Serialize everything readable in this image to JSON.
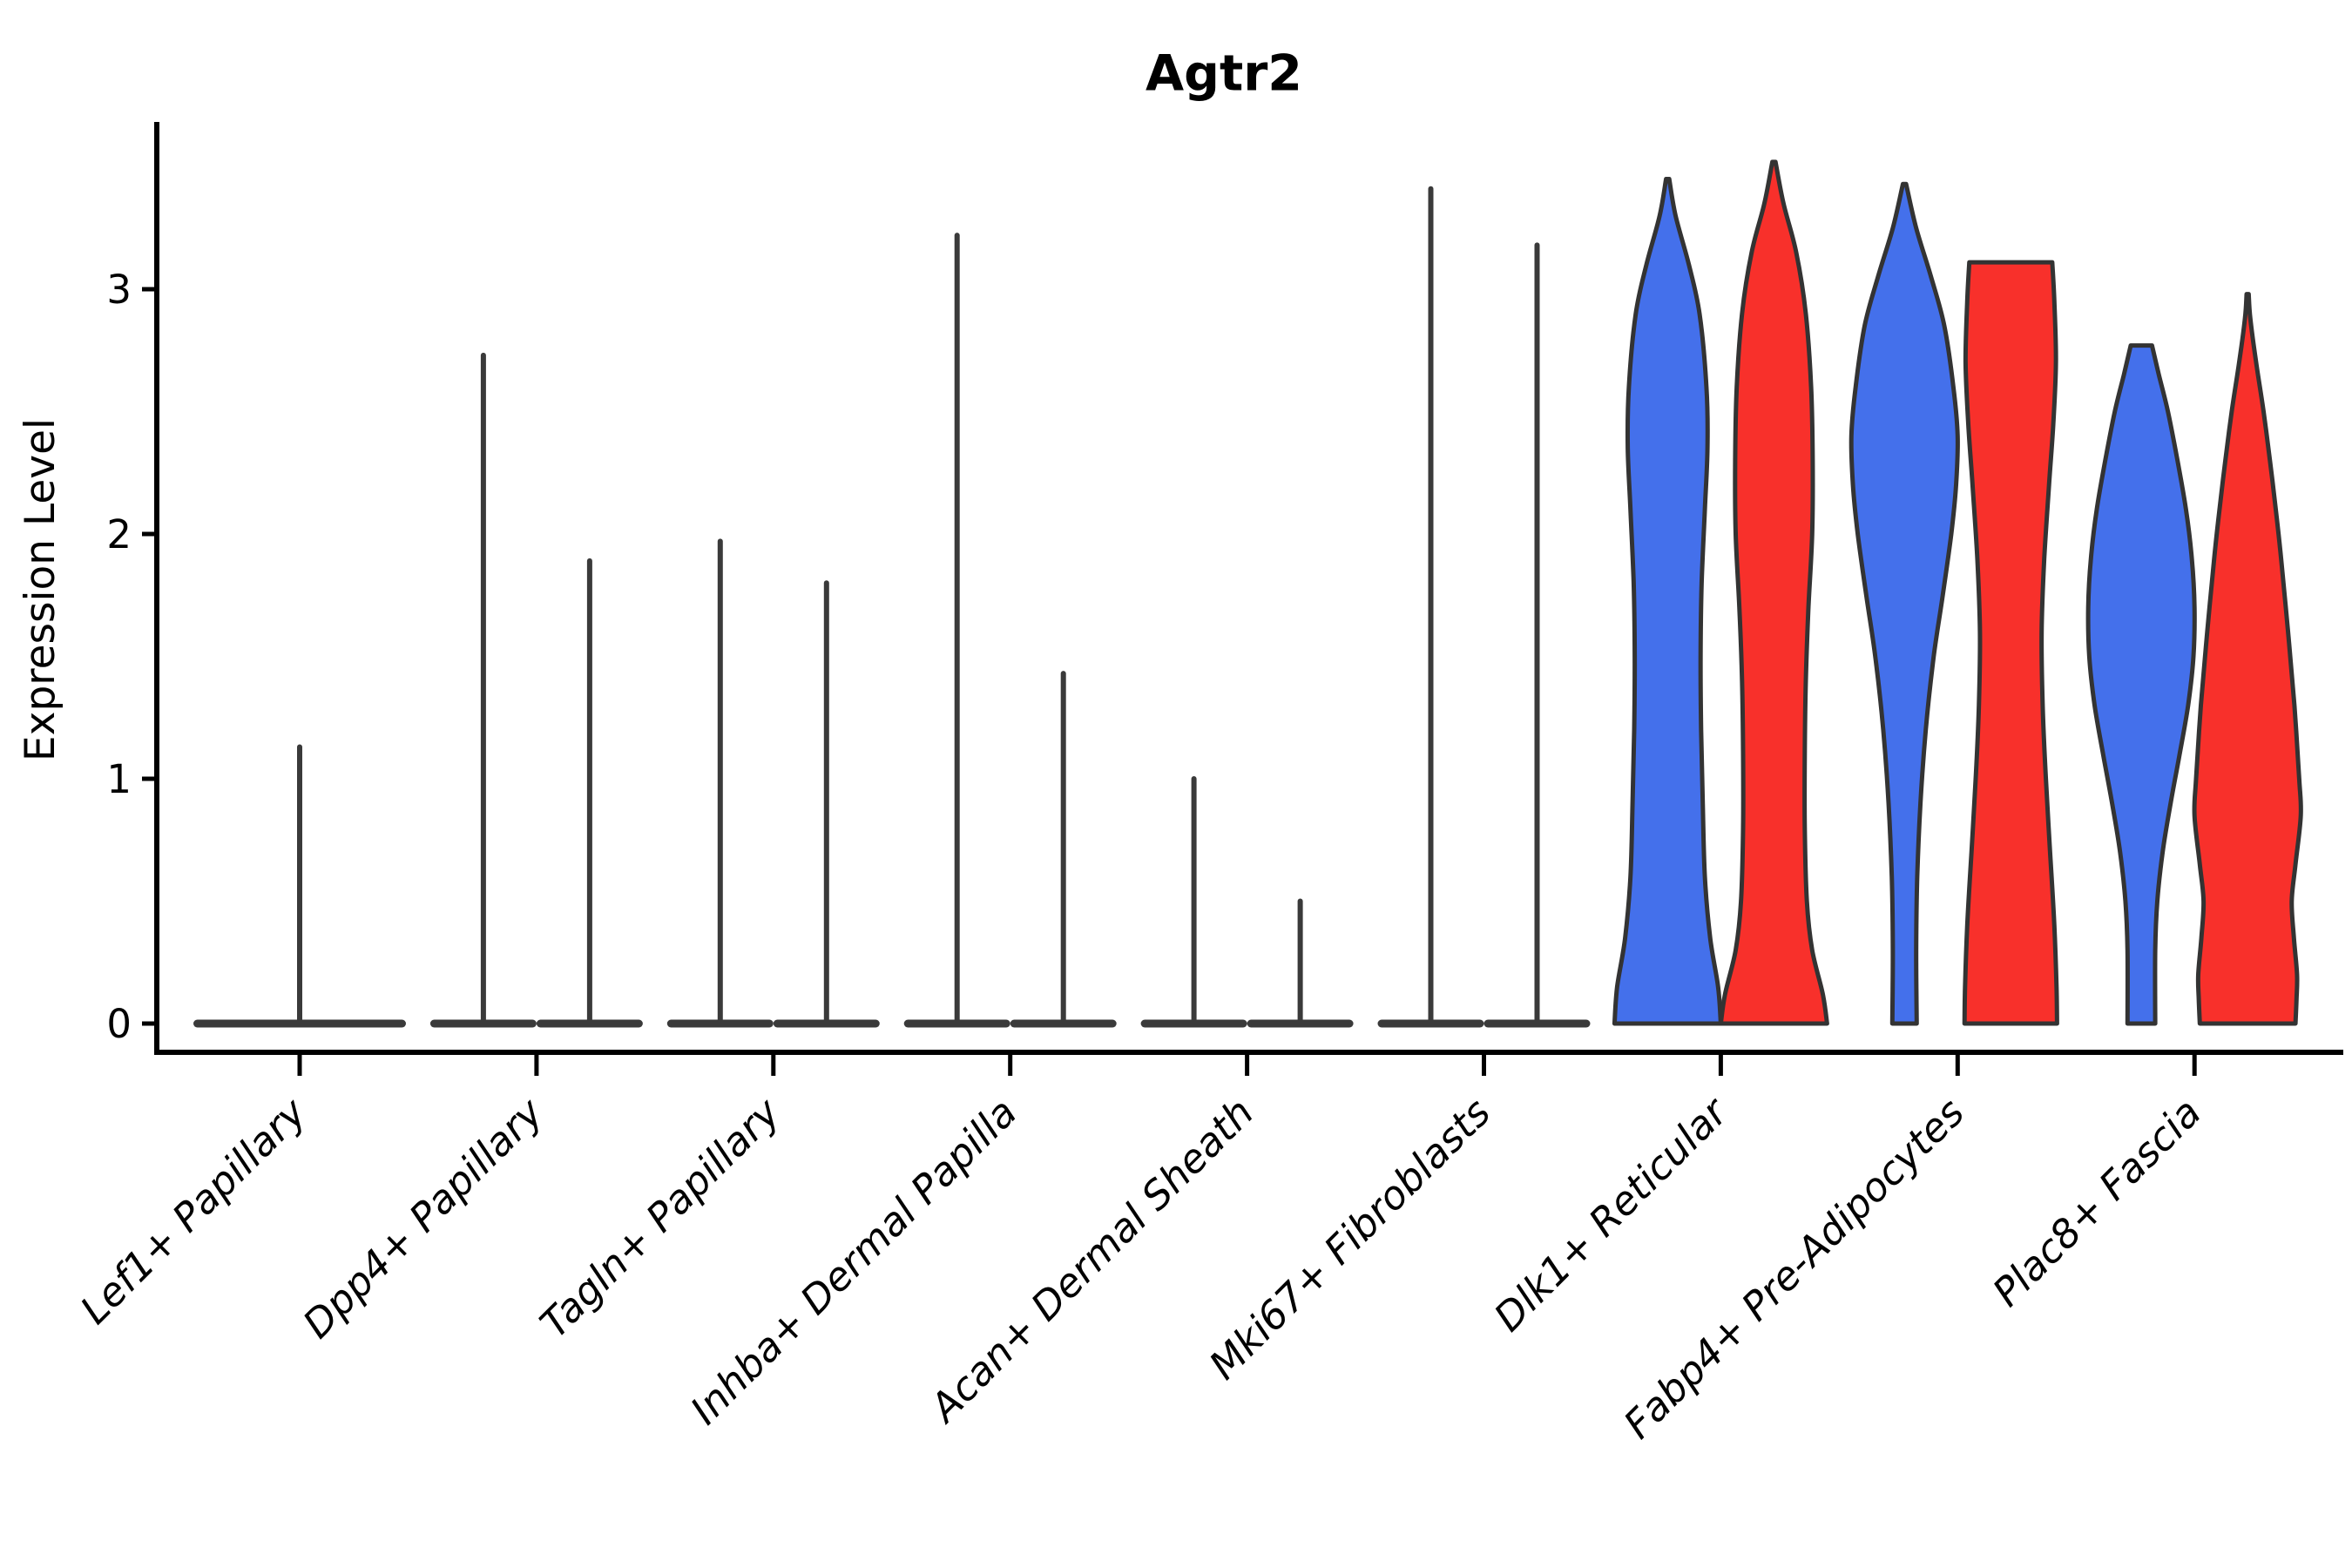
{
  "chart_data": {
    "type": "violin",
    "title": "Agtr2",
    "ylabel": "Expression Level",
    "xlabel": "",
    "yticks": [
      0,
      1,
      2,
      3
    ],
    "ylim": [
      0,
      3.6
    ],
    "grid": false,
    "legend_position": "none",
    "colors": {
      "blue": "#4470EB",
      "red": "#F8302B",
      "outline": "#333333",
      "collapsed": "#3a3a3a",
      "axis": "#000000"
    },
    "categories": [
      "Lef1+ Papillary",
      "Dpp4+ Papillary",
      "Tagln+ Papillary",
      "Inhba+ Dermal Papilla",
      "Acan+ Dermal Sheath",
      "Mki67+ Fibroblasts",
      "Dlk1+ Reticular",
      "Fabp4+ Pre-Adipocytes",
      "Plac8+ Fascia"
    ],
    "violins": [
      {
        "cat": 0,
        "side": "center",
        "fill": "none",
        "shape": "collapsed",
        "max": 1.13
      },
      {
        "cat": 1,
        "side": "left",
        "fill": "none",
        "shape": "collapsed",
        "max": 2.73
      },
      {
        "cat": 1,
        "side": "right",
        "fill": "none",
        "shape": "collapsed",
        "max": 1.89
      },
      {
        "cat": 2,
        "side": "left",
        "fill": "none",
        "shape": "collapsed",
        "max": 1.97
      },
      {
        "cat": 2,
        "side": "right",
        "fill": "none",
        "shape": "collapsed",
        "max": 1.8
      },
      {
        "cat": 3,
        "side": "left",
        "fill": "none",
        "shape": "collapsed",
        "max": 3.22
      },
      {
        "cat": 3,
        "side": "right",
        "fill": "none",
        "shape": "collapsed",
        "max": 1.43
      },
      {
        "cat": 4,
        "side": "left",
        "fill": "none",
        "shape": "collapsed",
        "max": 1.0
      },
      {
        "cat": 4,
        "side": "right",
        "fill": "none",
        "shape": "collapsed",
        "max": 0.5
      },
      {
        "cat": 5,
        "side": "left",
        "fill": "none",
        "shape": "collapsed",
        "max": 3.41
      },
      {
        "cat": 5,
        "side": "right",
        "fill": "none",
        "shape": "collapsed",
        "max": 3.18
      },
      {
        "cat": 6,
        "side": "left",
        "fill": "blue",
        "shape": "violin",
        "max": 3.45,
        "profile": [
          [
            3.45,
            0.03
          ],
          [
            3.3,
            0.15
          ],
          [
            3.1,
            0.4
          ],
          [
            2.9,
            0.6
          ],
          [
            2.6,
            0.73
          ],
          [
            2.35,
            0.75
          ],
          [
            2.1,
            0.7
          ],
          [
            1.8,
            0.64
          ],
          [
            1.5,
            0.62
          ],
          [
            1.2,
            0.63
          ],
          [
            0.9,
            0.66
          ],
          [
            0.6,
            0.7
          ],
          [
            0.35,
            0.8
          ],
          [
            0.15,
            0.95
          ],
          [
            0.0,
            1.0
          ]
        ]
      },
      {
        "cat": 6,
        "side": "right",
        "fill": "red",
        "shape": "violin",
        "max": 3.52,
        "profile": [
          [
            3.52,
            0.03
          ],
          [
            3.35,
            0.18
          ],
          [
            3.15,
            0.42
          ],
          [
            2.9,
            0.6
          ],
          [
            2.6,
            0.7
          ],
          [
            2.3,
            0.73
          ],
          [
            2.0,
            0.72
          ],
          [
            1.7,
            0.65
          ],
          [
            1.4,
            0.6
          ],
          [
            1.1,
            0.58
          ],
          [
            0.8,
            0.58
          ],
          [
            0.5,
            0.62
          ],
          [
            0.3,
            0.72
          ],
          [
            0.12,
            0.92
          ],
          [
            0.0,
            1.0
          ]
        ]
      },
      {
        "cat": 7,
        "side": "left",
        "fill": "blue",
        "shape": "violin",
        "max": 3.43,
        "profile": [
          [
            3.43,
            0.03
          ],
          [
            3.25,
            0.22
          ],
          [
            3.05,
            0.5
          ],
          [
            2.85,
            0.75
          ],
          [
            2.6,
            0.92
          ],
          [
            2.4,
            1.0
          ],
          [
            2.2,
            0.97
          ],
          [
            2.0,
            0.88
          ],
          [
            1.75,
            0.72
          ],
          [
            1.5,
            0.55
          ],
          [
            1.2,
            0.4
          ],
          [
            0.9,
            0.3
          ],
          [
            0.6,
            0.24
          ],
          [
            0.3,
            0.22
          ],
          [
            0.0,
            0.23
          ]
        ]
      },
      {
        "cat": 7,
        "side": "right",
        "fill": "red",
        "shape": "violin",
        "max": 3.11,
        "profile": [
          [
            3.11,
            0.78
          ],
          [
            2.95,
            0.82
          ],
          [
            2.7,
            0.85
          ],
          [
            2.45,
            0.8
          ],
          [
            2.2,
            0.72
          ],
          [
            1.9,
            0.63
          ],
          [
            1.6,
            0.58
          ],
          [
            1.3,
            0.6
          ],
          [
            1.0,
            0.66
          ],
          [
            0.7,
            0.74
          ],
          [
            0.4,
            0.82
          ],
          [
            0.15,
            0.86
          ],
          [
            0.0,
            0.87
          ]
        ]
      },
      {
        "cat": 8,
        "side": "left",
        "fill": "blue",
        "shape": "violin",
        "max": 2.77,
        "profile": [
          [
            2.77,
            0.2
          ],
          [
            2.65,
            0.33
          ],
          [
            2.5,
            0.5
          ],
          [
            2.3,
            0.68
          ],
          [
            2.1,
            0.84
          ],
          [
            1.9,
            0.95
          ],
          [
            1.7,
            1.0
          ],
          [
            1.5,
            0.98
          ],
          [
            1.3,
            0.88
          ],
          [
            1.1,
            0.72
          ],
          [
            0.9,
            0.55
          ],
          [
            0.7,
            0.4
          ],
          [
            0.5,
            0.3
          ],
          [
            0.3,
            0.26
          ],
          [
            0.0,
            0.26
          ]
        ]
      },
      {
        "cat": 8,
        "side": "right",
        "fill": "red",
        "shape": "violin",
        "max": 2.98,
        "profile": [
          [
            2.98,
            0.02
          ],
          [
            2.88,
            0.05
          ],
          [
            2.7,
            0.16
          ],
          [
            2.5,
            0.3
          ],
          [
            2.3,
            0.42
          ],
          [
            2.1,
            0.53
          ],
          [
            1.9,
            0.63
          ],
          [
            1.6,
            0.76
          ],
          [
            1.3,
            0.88
          ],
          [
            1.0,
            0.97
          ],
          [
            0.85,
            1.0
          ],
          [
            0.65,
            0.9
          ],
          [
            0.5,
            0.83
          ],
          [
            0.35,
            0.87
          ],
          [
            0.2,
            0.93
          ],
          [
            0.1,
            0.92
          ],
          [
            0.0,
            0.9
          ]
        ]
      }
    ]
  }
}
